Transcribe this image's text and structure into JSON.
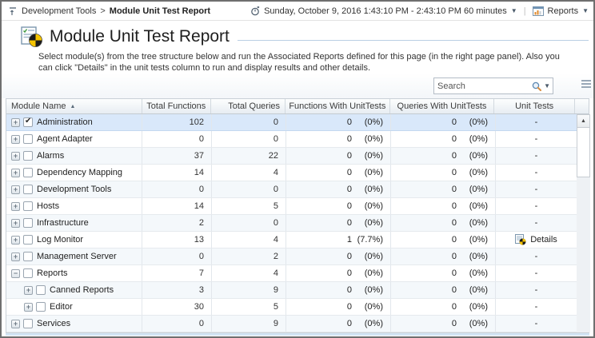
{
  "breadcrumb": {
    "parent": "Development Tools",
    "separator": ">",
    "current": "Module Unit Test Report"
  },
  "topbar": {
    "time_range": "Sunday, October 9, 2016 1:43:10 PM - 2:43:10 PM 60 minutes",
    "reports_label": "Reports"
  },
  "page": {
    "title": "Module Unit Test Report",
    "description": "Select module(s) from the tree structure below and run the Associated Reports defined for this page (in the right page panel). Also you can click \"Details\" in the unit tests column to run and display results and other details."
  },
  "search": {
    "placeholder": "Search"
  },
  "colors": {
    "selected_row": "#d9e8fa",
    "alt_row": "#f4f8fb",
    "title_rule": "#b9cfe4",
    "pie_yellow": "#f5c400",
    "pie_black": "#1a1a1a"
  },
  "table": {
    "columns": [
      {
        "label": "Module Name",
        "sorted": "asc"
      },
      {
        "label": "Total Functions"
      },
      {
        "label": "Total Queries"
      },
      {
        "label": "Functions With UnitTests"
      },
      {
        "label": "Queries With UnitTests"
      },
      {
        "label": "Unit Tests"
      }
    ],
    "rows": [
      {
        "name": "Administration",
        "level": 0,
        "expander": "plus",
        "checked": true,
        "selected": true,
        "total_functions": "102",
        "total_queries": "0",
        "func_ut": "0",
        "func_ut_pct": "(0%)",
        "query_ut": "0",
        "query_ut_pct": "(0%)",
        "unit_tests": "-"
      },
      {
        "name": "Agent Adapter",
        "level": 0,
        "expander": "plus",
        "checked": false,
        "selected": false,
        "total_functions": "0",
        "total_queries": "0",
        "func_ut": "0",
        "func_ut_pct": "(0%)",
        "query_ut": "0",
        "query_ut_pct": "(0%)",
        "unit_tests": "-"
      },
      {
        "name": "Alarms",
        "level": 0,
        "expander": "plus",
        "checked": false,
        "selected": false,
        "total_functions": "37",
        "total_queries": "22",
        "func_ut": "0",
        "func_ut_pct": "(0%)",
        "query_ut": "0",
        "query_ut_pct": "(0%)",
        "unit_tests": "-"
      },
      {
        "name": "Dependency Mapping",
        "level": 0,
        "expander": "plus",
        "checked": false,
        "selected": false,
        "total_functions": "14",
        "total_queries": "4",
        "func_ut": "0",
        "func_ut_pct": "(0%)",
        "query_ut": "0",
        "query_ut_pct": "(0%)",
        "unit_tests": "-"
      },
      {
        "name": "Development Tools",
        "level": 0,
        "expander": "plus",
        "checked": false,
        "selected": false,
        "total_functions": "0",
        "total_queries": "0",
        "func_ut": "0",
        "func_ut_pct": "(0%)",
        "query_ut": "0",
        "query_ut_pct": "(0%)",
        "unit_tests": "-"
      },
      {
        "name": "Hosts",
        "level": 0,
        "expander": "plus",
        "checked": false,
        "selected": false,
        "total_functions": "14",
        "total_queries": "5",
        "func_ut": "0",
        "func_ut_pct": "(0%)",
        "query_ut": "0",
        "query_ut_pct": "(0%)",
        "unit_tests": "-"
      },
      {
        "name": "Infrastructure",
        "level": 0,
        "expander": "plus",
        "checked": false,
        "selected": false,
        "total_functions": "2",
        "total_queries": "0",
        "func_ut": "0",
        "func_ut_pct": "(0%)",
        "query_ut": "0",
        "query_ut_pct": "(0%)",
        "unit_tests": "-"
      },
      {
        "name": "Log Monitor",
        "level": 0,
        "expander": "plus",
        "checked": false,
        "selected": false,
        "total_functions": "13",
        "total_queries": "4",
        "func_ut": "1",
        "func_ut_pct": "(7.7%)",
        "query_ut": "0",
        "query_ut_pct": "(0%)",
        "unit_tests": "Details",
        "details": true
      },
      {
        "name": "Management Server",
        "level": 0,
        "expander": "plus",
        "checked": false,
        "selected": false,
        "total_functions": "0",
        "total_queries": "2",
        "func_ut": "0",
        "func_ut_pct": "(0%)",
        "query_ut": "0",
        "query_ut_pct": "(0%)",
        "unit_tests": "-"
      },
      {
        "name": "Reports",
        "level": 0,
        "expander": "minus",
        "checked": false,
        "selected": false,
        "total_functions": "7",
        "total_queries": "4",
        "func_ut": "0",
        "func_ut_pct": "(0%)",
        "query_ut": "0",
        "query_ut_pct": "(0%)",
        "unit_tests": "-"
      },
      {
        "name": "Canned Reports",
        "level": 1,
        "expander": "plus",
        "checked": false,
        "selected": false,
        "total_functions": "3",
        "total_queries": "9",
        "func_ut": "0",
        "func_ut_pct": "(0%)",
        "query_ut": "0",
        "query_ut_pct": "(0%)",
        "unit_tests": "-"
      },
      {
        "name": "Editor",
        "level": 1,
        "expander": "plus",
        "checked": false,
        "selected": false,
        "total_functions": "30",
        "total_queries": "5",
        "func_ut": "0",
        "func_ut_pct": "(0%)",
        "query_ut": "0",
        "query_ut_pct": "(0%)",
        "unit_tests": "-"
      },
      {
        "name": "Services",
        "level": 0,
        "expander": "plus",
        "checked": false,
        "selected": false,
        "total_functions": "0",
        "total_queries": "9",
        "func_ut": "0",
        "func_ut_pct": "(0%)",
        "query_ut": "0",
        "query_ut_pct": "(0%)",
        "unit_tests": "-"
      }
    ]
  }
}
